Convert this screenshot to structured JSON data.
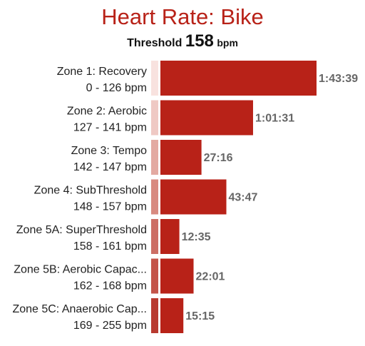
{
  "header": {
    "title": "Heart Rate: Bike",
    "threshold_label": "Threshold",
    "threshold_value": "158",
    "threshold_unit": "bpm"
  },
  "colors": {
    "bar": "#b82218",
    "title": "#b82218",
    "zone_swatches": [
      "#f8e2df",
      "#efc9c4",
      "#e3aaa2",
      "#d88a80",
      "#cc6e65",
      "#c3544a",
      "#b83a30"
    ]
  },
  "chart_data": {
    "type": "bar",
    "orientation": "horizontal",
    "title": "Heart Rate: Bike",
    "categories": [
      "Zone 1: Recovery",
      "Zone 2: Aerobic",
      "Zone 3: Tempo",
      "Zone 4: SubThreshold",
      "Zone 5A: SuperThreshold",
      "Zone 5B: Aerobic Capac...",
      "Zone 5C: Anaerobic Cap..."
    ],
    "ranges": [
      "0 - 126 bpm",
      "127 - 141 bpm",
      "142 - 147 bpm",
      "148 - 157 bpm",
      "158 - 161 bpm",
      "162 - 168 bpm",
      "169 - 255 bpm"
    ],
    "value_labels": [
      "1:43:39",
      "1:01:31",
      "27:16",
      "43:47",
      "12:35",
      "22:01",
      "15:15"
    ],
    "values_seconds": [
      6219,
      3691,
      1636,
      2627,
      755,
      1321,
      915
    ],
    "xlabel": "",
    "ylabel": "",
    "grid": false,
    "legend": "none"
  }
}
